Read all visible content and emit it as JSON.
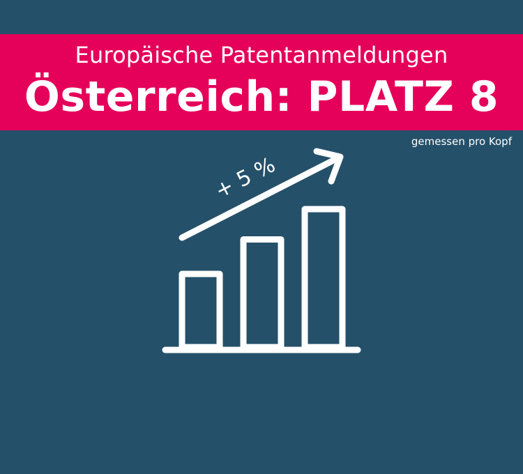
{
  "colors": {
    "background": "#24506a",
    "banner": "#e5005a",
    "foreground": "#ffffff"
  },
  "header": {
    "subtitle": "Europäische Patentanmeldungen",
    "title": "Österreich: PLATZ 8",
    "note": "gemessen pro Kopf"
  },
  "graphic": {
    "icon": "growth-bar-chart-icon",
    "bar_levels": [
      0.53,
      0.78,
      1.0
    ],
    "growth_label": "+ 5 %"
  }
}
